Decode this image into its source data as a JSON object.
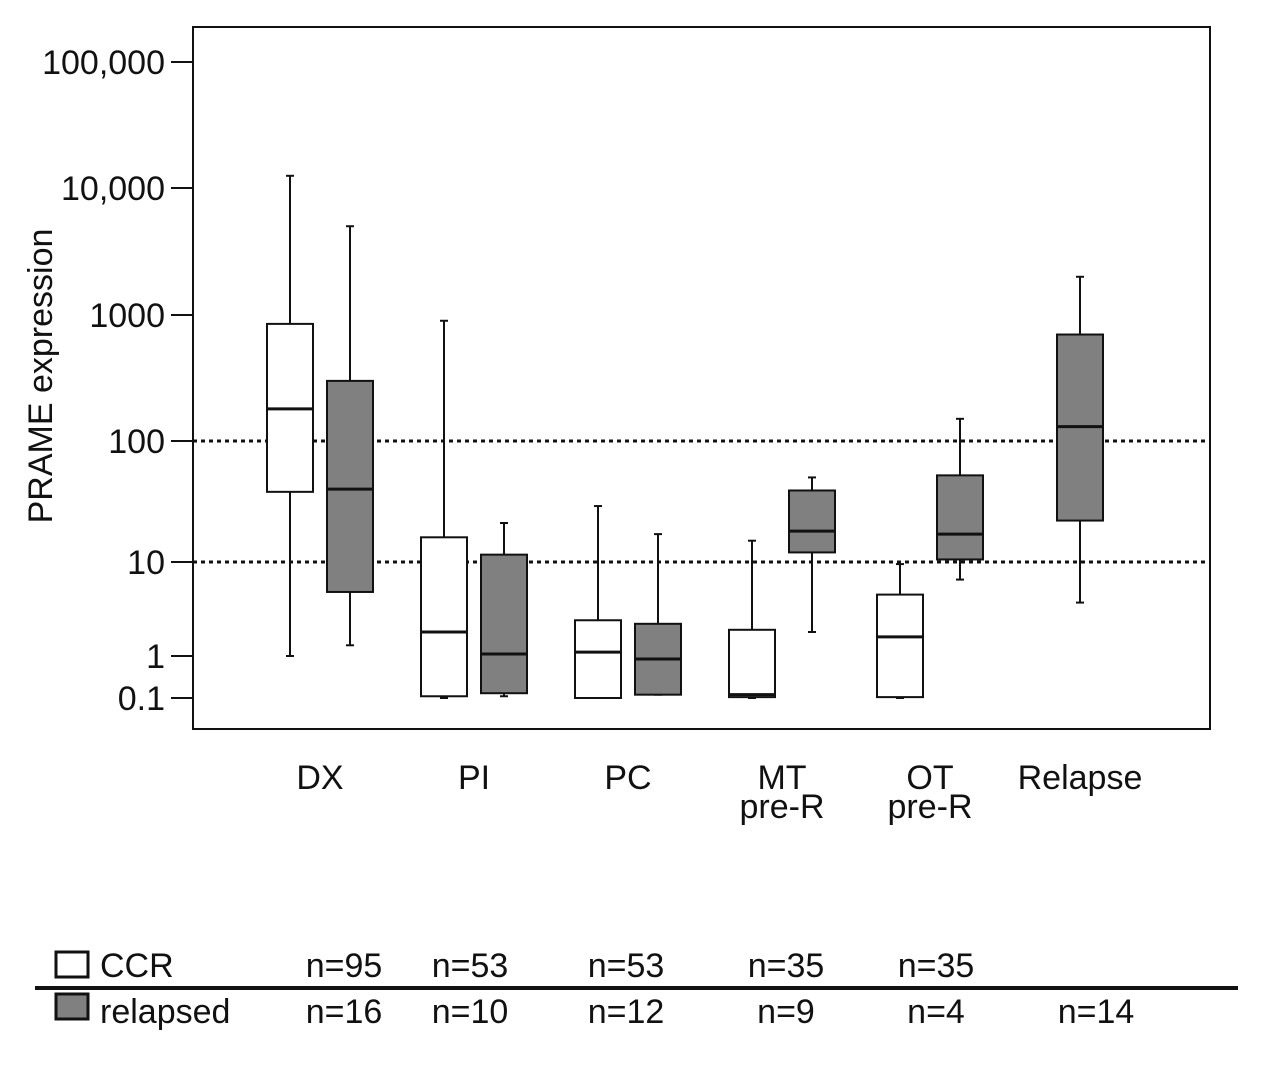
{
  "chart_data": {
    "type": "box",
    "ylabel": "PRAME expression",
    "yscale": "log",
    "yticks": [
      {
        "value": 0.1,
        "label": "0.1"
      },
      {
        "value": 1,
        "label": "1"
      },
      {
        "value": 10,
        "label": "10"
      },
      {
        "value": 100,
        "label": "100"
      },
      {
        "value": 1000,
        "label": "1000"
      },
      {
        "value": 10000,
        "label": "10,000"
      },
      {
        "value": 100000,
        "label": "100,000"
      }
    ],
    "reference_lines": [
      100,
      10
    ],
    "categories": [
      {
        "label": "DX",
        "sublabel": ""
      },
      {
        "label": "PI",
        "sublabel": ""
      },
      {
        "label": "PC",
        "sublabel": ""
      },
      {
        "label": "MT",
        "sublabel": "pre-R"
      },
      {
        "label": "OT",
        "sublabel": "pre-R"
      },
      {
        "label": "Relapse",
        "sublabel": ""
      }
    ],
    "series": [
      {
        "name": "CCR",
        "color": "#ffffff",
        "boxes": [
          {
            "category": "DX",
            "min": 1,
            "q1": 38,
            "median": 180,
            "q3": 850,
            "max": 12500
          },
          {
            "category": "PI",
            "min": 0.1,
            "q1": 0.11,
            "median": 1.8,
            "q3": 16,
            "max": 900
          },
          {
            "category": "PC",
            "min": 0.1,
            "q1": 0.1,
            "median": 1.1,
            "q3": 2.4,
            "max": 29
          },
          {
            "category": "MT pre-R",
            "min": 0.1,
            "q1": 0.105,
            "median": 0.12,
            "q3": 1.9,
            "max": 15
          },
          {
            "category": "OT pre-R",
            "min": 0.1,
            "q1": 0.105,
            "median": 1.6,
            "q3": 4.5,
            "max": 9.5
          }
        ],
        "n": [
          "n=95",
          "n=53",
          "n=53",
          "n=35",
          "n=35",
          ""
        ]
      },
      {
        "name": "relapsed",
        "color": "#808080",
        "boxes": [
          {
            "category": "DX",
            "min": 1.3,
            "q1": 4.8,
            "median": 40,
            "q3": 300,
            "max": 5000
          },
          {
            "category": "PI",
            "min": 0.11,
            "q1": 0.13,
            "median": 1.05,
            "q3": 11.5,
            "max": 21
          },
          {
            "category": "PC",
            "min": 0.12,
            "q1": 0.12,
            "median": 0.85,
            "q3": 2.2,
            "max": 17
          },
          {
            "category": "MT pre-R",
            "min": 1.8,
            "q1": 12,
            "median": 18,
            "q3": 39,
            "max": 50
          },
          {
            "category": "OT pre-R",
            "min": 6.5,
            "q1": 10.5,
            "median": 17,
            "q3": 52,
            "max": 150
          },
          {
            "category": "Relapse",
            "min": 3.7,
            "q1": 22,
            "median": 130,
            "q3": 700,
            "max": 2000
          }
        ],
        "n": [
          "n=16",
          "n=10",
          "n=12",
          "n=9",
          "n=4",
          "n=14"
        ]
      }
    ]
  },
  "legend": {
    "items": [
      {
        "label": "CCR",
        "color": "#ffffff"
      },
      {
        "label": "relapsed",
        "color": "#808080"
      }
    ]
  }
}
